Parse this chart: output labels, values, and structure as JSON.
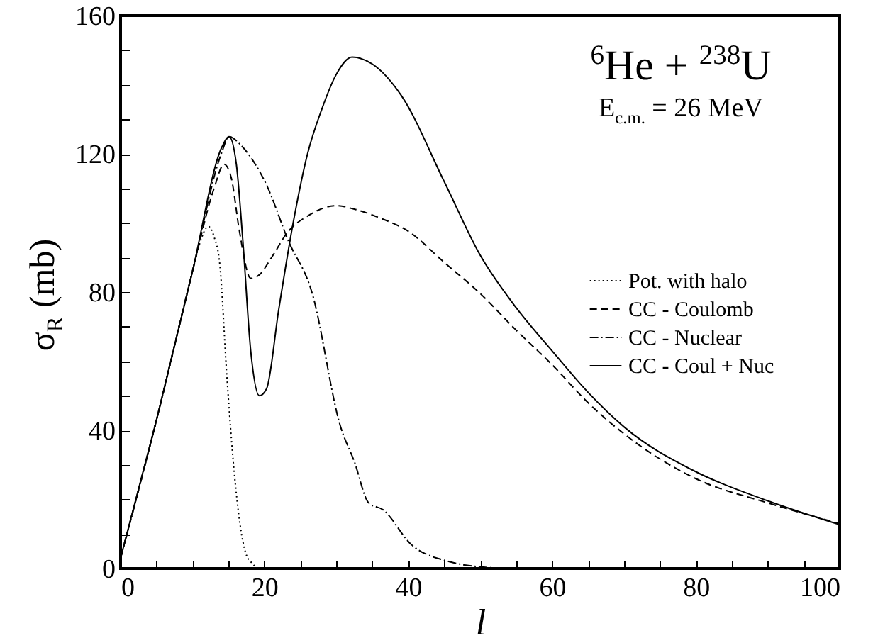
{
  "chart_data": {
    "type": "line",
    "annotations": [
      "$^{6}$He + $^{238}$U",
      "E$_{c.m.}$ = 26 MeV"
    ],
    "xlabel": "l",
    "ylabel": "σ$_{R}$ (mb)",
    "xlim": [
      0,
      100
    ],
    "ylim": [
      0,
      160
    ],
    "xticks": [
      0,
      {
        "value": 5,
        "label": null
      },
      {
        "value": 10,
        "label": null
      },
      {
        "value": 15,
        "label": null
      },
      20,
      {
        "value": 25,
        "label": null
      },
      {
        "value": 30,
        "label": null
      },
      {
        "value": 35,
        "label": null
      },
      40,
      {
        "value": 45,
        "label": null
      },
      {
        "value": 50,
        "label": null
      },
      {
        "value": 55,
        "label": null
      },
      60,
      {
        "value": 65,
        "label": null
      },
      {
        "value": 70,
        "label": null
      },
      {
        "value": 75,
        "label": null
      },
      80,
      {
        "value": 85,
        "label": null
      },
      {
        "value": 90,
        "label": null
      },
      {
        "value": 95,
        "label": null
      },
      100
    ],
    "yticks": [
      0,
      {
        "value": 10,
        "label": null
      },
      {
        "value": 20,
        "label": null
      },
      {
        "value": 30,
        "label": null
      },
      40,
      {
        "value": 50,
        "label": null
      },
      {
        "value": 60,
        "label": null
      },
      {
        "value": 70,
        "label": null
      },
      80,
      {
        "value": 90,
        "label": null
      },
      {
        "value": 100,
        "label": null
      },
      {
        "value": 110,
        "label": null
      },
      120,
      {
        "value": 130,
        "label": null
      },
      {
        "value": 140,
        "label": null
      },
      {
        "value": 150,
        "label": null
      },
      160
    ],
    "grid": false,
    "legend": "right",
    "marker": "none",
    "series": [
      {
        "name": "Pot. with halo",
        "color": "#000000",
        "line_style": "dotted",
        "x": [
          0,
          5,
          10,
          11,
          12.2,
          13,
          13.8,
          14.8,
          15.8,
          16.6,
          17.4,
          18.3,
          19.3,
          20
        ],
        "values": [
          3,
          43,
          86,
          94,
          99,
          96,
          88,
          55,
          28,
          13,
          4.5,
          1.5,
          0,
          0
        ]
      },
      {
        "name": "CC - Coulomb",
        "color": "#000000",
        "line_style": "dashed",
        "x": [
          0,
          5,
          10,
          13,
          14.4,
          15.4,
          16.5,
          18.1,
          19.3,
          21,
          23.3,
          26,
          30,
          32.5,
          36,
          40,
          45,
          50,
          55,
          60,
          65,
          70,
          80,
          90,
          100
        ],
        "values": [
          3,
          43,
          86,
          110,
          117,
          113,
          98,
          84,
          85,
          90,
          97.5,
          102,
          105,
          104,
          101.5,
          97.6,
          88.6,
          79.6,
          69,
          59,
          48,
          39,
          26,
          19,
          13
        ]
      },
      {
        "name": "CC - Nuclear",
        "color": "#000000",
        "line_style": "dashdot",
        "x": [
          0,
          5,
          10,
          14,
          15.1,
          16.5,
          18.1,
          20.3,
          23.3,
          26.6,
          30.6,
          32.5,
          34.5,
          36.5,
          40.4,
          45.7,
          50,
          55,
          60
        ],
        "values": [
          3,
          43,
          86,
          120,
          125,
          123,
          119,
          111,
          95,
          80,
          41,
          31,
          19,
          17,
          7,
          2,
          0.5,
          0,
          0
        ]
      },
      {
        "name": "CC - Coul + Nuc",
        "color": "#000000",
        "line_style": "solid",
        "x": [
          0,
          5,
          10,
          14.1,
          15.1,
          16.1,
          17,
          18.1,
          19.3,
          20.3,
          22,
          24,
          26,
          28,
          30,
          32.2,
          35,
          39,
          45,
          50,
          55,
          60,
          65,
          70,
          80,
          90,
          100
        ],
        "values": [
          3,
          43,
          86,
          122,
          125,
          117,
          95,
          63,
          50,
          52,
          75,
          100,
          120,
          133,
          143,
          148,
          146,
          137,
          112,
          90.7,
          75.5,
          63,
          51,
          41,
          28,
          19.6,
          12.7
        ]
      }
    ]
  }
}
